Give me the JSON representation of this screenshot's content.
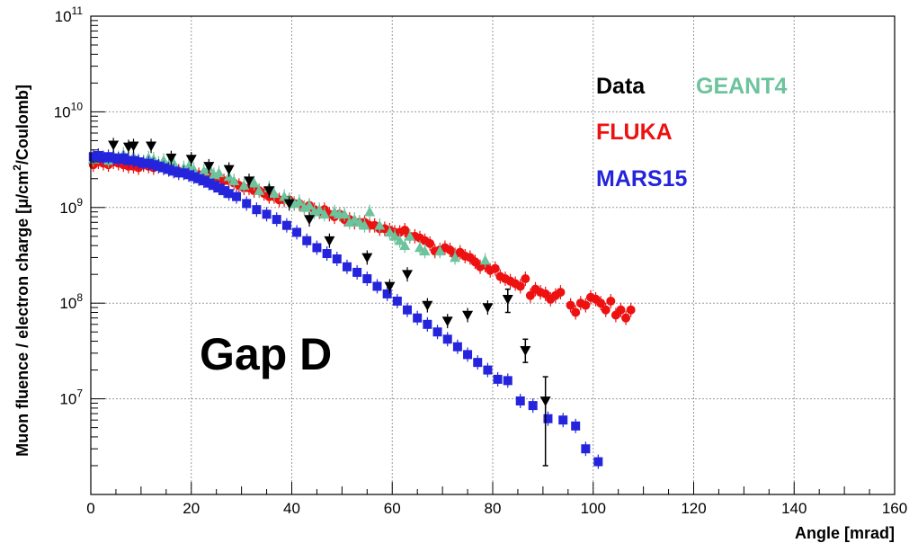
{
  "chart_data": {
    "type": "scatter",
    "xlabel": "Angle [mrad]",
    "ylabel": "Muon fluence / electron charge [μ/cm²/Coulomb]",
    "ylabel_parts": {
      "pre": "Muon fluence / electron charge [μ/cm",
      "sup": "2",
      "post": "/Coulomb]"
    },
    "xlim": [
      0,
      160
    ],
    "ylim": [
      1000000,
      100000000000
    ],
    "yscale": "log",
    "grid": true,
    "legend_placement": "top-right",
    "x_ticks": [
      0,
      20,
      40,
      60,
      80,
      100,
      120,
      140,
      160
    ],
    "x_tick_labels": [
      "0",
      "20",
      "40",
      "60",
      "80",
      "100",
      "120",
      "140",
      "160"
    ],
    "y_ticks": [
      {
        "value": 10000000,
        "base": "10",
        "exp": "7"
      },
      {
        "value": 100000000,
        "base": "10",
        "exp": "8"
      },
      {
        "value": 1000000000,
        "base": "10",
        "exp": "9"
      },
      {
        "value": 10000000000,
        "base": "10",
        "exp": "10"
      },
      {
        "value": 100000000000,
        "base": "10",
        "exp": "11"
      }
    ],
    "annotations": [
      {
        "text": "Gap D"
      }
    ],
    "series": [
      {
        "name": "FLUKA",
        "color": "#ee1111",
        "marker": "circle",
        "points": [
          [
            0.5,
            2800000000.0
          ],
          [
            1.5,
            3000000000.0
          ],
          [
            2.5,
            2900000000.0
          ],
          [
            3.5,
            2800000000.0
          ],
          [
            4.5,
            3000000000.0
          ],
          [
            5.5,
            2900000000.0
          ],
          [
            6.5,
            2800000000.0
          ],
          [
            7.5,
            2700000000.0
          ],
          [
            8.5,
            2700000000.0
          ],
          [
            9.5,
            2600000000.0
          ],
          [
            10.5,
            2800000000.0
          ],
          [
            11.5,
            2700000000.0
          ],
          [
            12.5,
            2600000000.0
          ],
          [
            13.5,
            2700000000.0
          ],
          [
            14.5,
            2600000000.0
          ],
          [
            15.5,
            2500000000.0
          ],
          [
            16.5,
            2600000000.0
          ],
          [
            17.5,
            2400000000.0
          ],
          [
            18.5,
            2400000000.0
          ],
          [
            19.5,
            2300000000.0
          ],
          [
            20.5,
            2300000000.0
          ],
          [
            21.5,
            2200000000.0
          ],
          [
            22.5,
            2200000000.0
          ],
          [
            23.5,
            2100000000.0
          ],
          [
            24.5,
            2100000000.0
          ],
          [
            25.5,
            2000000000.0
          ],
          [
            26.5,
            1900000000.0
          ],
          [
            27.5,
            1900000000.0
          ],
          [
            28.5,
            1800000000.0
          ],
          [
            29.5,
            1700000000.0
          ],
          [
            30.5,
            1600000000.0
          ],
          [
            31.5,
            1600000000.0
          ],
          [
            32.5,
            1500000000.0
          ],
          [
            33.5,
            1500000000.0
          ],
          [
            34.5,
            1400000000.0
          ],
          [
            35.5,
            1300000000.0
          ],
          [
            36.5,
            1300000000.0
          ],
          [
            37.5,
            1200000000.0
          ],
          [
            38.5,
            1200000000.0
          ],
          [
            39.5,
            1200000000.0
          ],
          [
            40.5,
            1100000000.0
          ],
          [
            41.5,
            1100000000.0
          ],
          [
            42.5,
            1000000000.0
          ],
          [
            43.5,
            1050000000.0
          ],
          [
            44.5,
            950000000.0
          ],
          [
            45.5,
            900000000.0
          ],
          [
            46.5,
            950000000.0
          ],
          [
            47.5,
            850000000.0
          ],
          [
            48.5,
            800000000.0
          ],
          [
            49.5,
            850000000.0
          ],
          [
            50.5,
            750000000.0
          ],
          [
            51.5,
            750000000.0
          ],
          [
            52.5,
            700000000.0
          ],
          [
            53.5,
            700000000.0
          ],
          [
            54.5,
            700000000.0
          ],
          [
            55.5,
            650000000.0
          ],
          [
            56.5,
            650000000.0
          ],
          [
            57.5,
            600000000.0
          ],
          [
            58.5,
            600000000.0
          ],
          [
            59.5,
            580000000.0
          ],
          [
            60.5,
            550000000.0
          ],
          [
            61.5,
            550000000.0
          ],
          [
            62.5,
            580000000.0
          ],
          [
            63.5,
            500000000.0
          ],
          [
            64.5,
            500000000.0
          ],
          [
            65.5,
            480000000.0
          ],
          [
            66.5,
            450000000.0
          ],
          [
            67.5,
            420000000.0
          ],
          [
            68.5,
            350000000.0
          ],
          [
            69.5,
            360000000.0
          ],
          [
            70.5,
            380000000.0
          ],
          [
            71.5,
            360000000.0
          ],
          [
            72.5,
            320000000.0
          ],
          [
            73.5,
            340000000.0
          ],
          [
            74.5,
            310000000.0
          ],
          [
            75.5,
            300000000.0
          ],
          [
            76.5,
            270000000.0
          ],
          [
            77.5,
            240000000.0
          ],
          [
            78.5,
            250000000.0
          ],
          [
            79.5,
            220000000.0
          ],
          [
            80.5,
            230000000.0
          ],
          [
            81.5,
            190000000.0
          ],
          [
            82.5,
            180000000.0
          ],
          [
            83.5,
            170000000.0
          ],
          [
            84.5,
            160000000.0
          ],
          [
            85.5,
            150000000.0
          ],
          [
            86.5,
            180000000.0
          ],
          [
            87.5,
            120000000.0
          ],
          [
            88.5,
            140000000.0
          ],
          [
            89.5,
            130000000.0
          ],
          [
            90.5,
            125000000.0
          ],
          [
            91.5,
            110000000.0
          ],
          [
            92.5,
            120000000.0
          ],
          [
            93.5,
            130000000.0
          ],
          [
            95.5,
            95000000.0
          ],
          [
            96.5,
            80000000.0
          ],
          [
            97.5,
            100000000.0
          ],
          [
            98.5,
            95000000.0
          ],
          [
            99.5,
            115000000.0
          ],
          [
            100.5,
            110000000.0
          ],
          [
            101.5,
            100000000.0
          ],
          [
            102.5,
            85000000.0
          ],
          [
            103.5,
            105000000.0
          ],
          [
            104.5,
            75000000.0
          ],
          [
            105.5,
            85000000.0
          ],
          [
            106.5,
            70000000.0
          ],
          [
            107.5,
            85000000.0
          ]
        ]
      },
      {
        "name": "GEANT4",
        "color": "#6cc39c",
        "marker": "triangle-up",
        "points": [
          [
            0.5,
            3200000000.0
          ],
          [
            1.5,
            3400000000.0
          ],
          [
            2.5,
            3300000000.0
          ],
          [
            3.5,
            3100000000.0
          ],
          [
            4.5,
            3500000000.0
          ],
          [
            5.5,
            3300000000.0
          ],
          [
            6.5,
            3600000000.0
          ],
          [
            7.5,
            3200000000.0
          ],
          [
            8.5,
            3400000000.0
          ],
          [
            9.5,
            3100000000.0
          ],
          [
            10.5,
            3000000000.0
          ],
          [
            11.5,
            3300000000.0
          ],
          [
            12.5,
            3200000000.0
          ],
          [
            13.5,
            2900000000.0
          ],
          [
            14.5,
            3100000000.0
          ],
          [
            15.5,
            2800000000.0
          ],
          [
            16.5,
            2900000000.0
          ],
          [
            18.5,
            2600000000.0
          ],
          [
            19.5,
            2700000000.0
          ],
          [
            20.5,
            2500000000.0
          ],
          [
            22.5,
            2400000000.0
          ],
          [
            23.5,
            2600000000.0
          ],
          [
            24.5,
            2200000000.0
          ],
          [
            25.5,
            2300000000.0
          ],
          [
            27.5,
            2100000000.0
          ],
          [
            28.5,
            1900000000.0
          ],
          [
            30.5,
            1700000000.0
          ],
          [
            32.5,
            1800000000.0
          ],
          [
            33.5,
            1500000000.0
          ],
          [
            35.5,
            1600000000.0
          ],
          [
            36.5,
            1400000000.0
          ],
          [
            38.5,
            1300000000.0
          ],
          [
            39.5,
            1200000000.0
          ],
          [
            40.5,
            1100000000.0
          ],
          [
            41.5,
            1150000000.0
          ],
          [
            42.5,
            1000000000.0
          ],
          [
            43.5,
            1050000000.0
          ],
          [
            44.5,
            900000000.0
          ],
          [
            45.5,
            950000000.0
          ],
          [
            46.5,
            850000000.0
          ],
          [
            48.5,
            900000000.0
          ],
          [
            49.5,
            850000000.0
          ],
          [
            50.5,
            850000000.0
          ],
          [
            51.5,
            700000000.0
          ],
          [
            52.5,
            750000000.0
          ],
          [
            53.5,
            700000000.0
          ],
          [
            54.5,
            650000000.0
          ],
          [
            55.5,
            900000000.0
          ],
          [
            57.5,
            650000000.0
          ],
          [
            59.5,
            550000000.0
          ],
          [
            60.5,
            500000000.0
          ],
          [
            61.5,
            450000000.0
          ],
          [
            62.5,
            400000000.0
          ],
          [
            63.5,
            500000000.0
          ],
          [
            65.5,
            380000000.0
          ],
          [
            66.5,
            350000000.0
          ],
          [
            69.5,
            350000000.0
          ],
          [
            72.5,
            300000000.0
          ],
          [
            78.5,
            280000000.0
          ]
        ]
      },
      {
        "name": "MARS15",
        "color": "#2424dd",
        "marker": "square",
        "points": [
          [
            0.5,
            3400000000.0
          ],
          [
            1.5,
            3500000000.0
          ],
          [
            2.5,
            3300000000.0
          ],
          [
            3.5,
            3400000000.0
          ],
          [
            4.5,
            3300000000.0
          ],
          [
            5.5,
            3200000000.0
          ],
          [
            6.5,
            3300000000.0
          ],
          [
            7.5,
            3100000000.0
          ],
          [
            8.5,
            3100000000.0
          ],
          [
            9.5,
            3000000000.0
          ],
          [
            10.5,
            2900000000.0
          ],
          [
            11.5,
            2900000000.0
          ],
          [
            12.5,
            2800000000.0
          ],
          [
            13.5,
            2700000000.0
          ],
          [
            14.5,
            2600000000.0
          ],
          [
            15.5,
            2500000000.0
          ],
          [
            16.5,
            2400000000.0
          ],
          [
            17.5,
            2300000000.0
          ],
          [
            18.5,
            2300000000.0
          ],
          [
            19.5,
            2200000000.0
          ],
          [
            20.5,
            2100000000.0
          ],
          [
            21.5,
            2000000000.0
          ],
          [
            22.5,
            1900000000.0
          ],
          [
            23.5,
            1800000000.0
          ],
          [
            24.5,
            1700000000.0
          ],
          [
            25.5,
            1600000000.0
          ],
          [
            26.5,
            1500000000.0
          ],
          [
            27.5,
            1400000000.0
          ],
          [
            29.0,
            1300000000.0
          ],
          [
            31.0,
            1100000000.0
          ],
          [
            33.0,
            950000000.0
          ],
          [
            35.0,
            850000000.0
          ],
          [
            37.0,
            750000000.0
          ],
          [
            39.0,
            650000000.0
          ],
          [
            41.0,
            550000000.0
          ],
          [
            43.0,
            450000000.0
          ],
          [
            45.0,
            380000000.0
          ],
          [
            47.0,
            330000000.0
          ],
          [
            49.0,
            290000000.0
          ],
          [
            51.0,
            240000000.0
          ],
          [
            53.0,
            210000000.0
          ],
          [
            55.0,
            180000000.0
          ],
          [
            57.0,
            150000000.0
          ],
          [
            59.0,
            125000000.0
          ],
          [
            61.0,
            105000000.0
          ],
          [
            63.0,
            85000000.0
          ],
          [
            65.0,
            70000000.0
          ],
          [
            67.0,
            60000000.0
          ],
          [
            69.0,
            50000000.0
          ],
          [
            71.0,
            42000000.0
          ],
          [
            73.0,
            35000000.0
          ],
          [
            75.0,
            29000000.0
          ],
          [
            77.0,
            24000000.0
          ],
          [
            79.0,
            20000000.0
          ],
          [
            81.0,
            16000000.0
          ],
          [
            83.0,
            15500000.0
          ],
          [
            85.5,
            9500000.0
          ],
          [
            88.0,
            8500000.0
          ],
          [
            91.0,
            6200000.0
          ],
          [
            94.0,
            6000000.0
          ],
          [
            96.5,
            5200000.0
          ],
          [
            98.5,
            3000000.0
          ],
          [
            101.0,
            2200000.0
          ]
        ]
      },
      {
        "name": "Data",
        "color": "#000000",
        "marker": "triangle-down",
        "points": [
          [
            4.5,
            4500000000.0
          ],
          [
            7.5,
            4300000000.0
          ],
          [
            8.5,
            4400000000.0
          ],
          [
            12.0,
            4400000000.0
          ],
          [
            16.0,
            3300000000.0
          ],
          [
            20.0,
            3200000000.0
          ],
          [
            23.5,
            2700000000.0
          ],
          [
            27.5,
            2500000000.0
          ],
          [
            31.5,
            1900000000.0
          ],
          [
            35.5,
            1500000000.0
          ],
          [
            39.5,
            1100000000.0
          ],
          [
            43.5,
            750000000.0
          ],
          [
            47.5,
            450000000.0
          ],
          [
            55.0,
            300000000.0
          ],
          [
            59.5,
            150000000.0
          ],
          [
            63.0,
            200000000.0
          ],
          [
            67.0,
            95000000.0
          ],
          [
            71.0,
            65000000.0
          ],
          [
            75.0,
            75000000.0
          ],
          [
            79.0,
            90000000.0
          ],
          [
            83.0,
            110000000.0
          ],
          [
            86.5,
            32000000.0
          ],
          [
            90.5,
            9500000.0
          ]
        ],
        "error_bars": [
          {
            "x": 90.5,
            "low": 2000000.0,
            "high": 17000000.0
          },
          {
            "x": 86.5,
            "low": 24000000.0,
            "high": 42000000.0
          },
          {
            "x": 83.0,
            "low": 80000000.0,
            "high": 140000000.0
          }
        ]
      }
    ],
    "legend": [
      {
        "label": "Data",
        "color": "#000000"
      },
      {
        "label": "GEANT4",
        "color": "#6cc39c"
      },
      {
        "label": "FLUKA",
        "color": "#ee1111"
      },
      {
        "label": "MARS15",
        "color": "#2424dd"
      }
    ]
  }
}
